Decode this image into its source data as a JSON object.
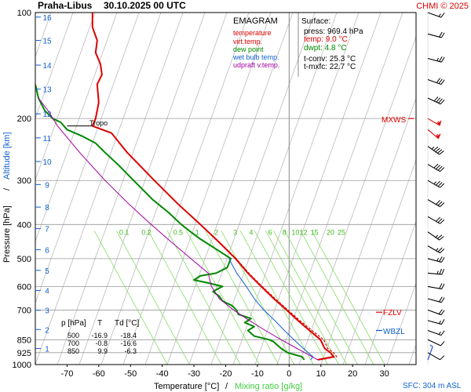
{
  "header": {
    "station": "Praha-Libus",
    "datetime": "30.10.2025 00 UTC",
    "credit": "CHMI © 2025"
  },
  "legend": {
    "title": "EMAGRAM",
    "items": [
      {
        "label": "temperature",
        "color": "#dd0000"
      },
      {
        "label": "virt.temp.",
        "color": "#dd0000"
      },
      {
        "label": "dew point",
        "color": "#008800"
      },
      {
        "label": "wet bulb temp.",
        "color": "#1060d0"
      },
      {
        "label": "udpraft v.temp.",
        "color": "#a000a0"
      }
    ]
  },
  "surface": {
    "title": "Surface:",
    "press": "press: 969.4 hPa",
    "temp": "temp: 9.0 °C",
    "dwpt": "dwpt: 4.8 °C",
    "tconv": "t-conv: 25.3 °C",
    "tmxfc": "t-mxfc: 22.7 °C"
  },
  "levels_table": {
    "headers": [
      "p [hPa]",
      "T",
      "Td [°C]"
    ],
    "rows": [
      [
        "500",
        "-16.9",
        "-18.4"
      ],
      [
        "700",
        "-0.8",
        "-16.6"
      ],
      [
        "850",
        "9.9",
        "-6.3"
      ]
    ]
  },
  "markers": {
    "mxws": "MXWS",
    "fzlv": "FZLV",
    "wbzl": "WBZL",
    "tropo": "Tropo"
  },
  "footer": {
    "sfc": "SFC: 304 m ASL"
  },
  "chart_data": {
    "type": "line",
    "xlabel": "Temperature [°C]",
    "xlabel_sep": "/",
    "xlabel2": "Mixing ratio [g/kg]",
    "ylabel": "Pressure [hPa]",
    "ylabel_sep": "/",
    "ylabel2": "Altitude [km]",
    "xlim": [
      -80,
      40
    ],
    "ylim": [
      1000,
      100
    ],
    "y_scale": "log",
    "x_ticks": [
      -70,
      -60,
      -50,
      -40,
      -30,
      -20,
      -10,
      0,
      10,
      20,
      30
    ],
    "p_ticks": [
      100,
      200,
      300,
      400,
      500,
      600,
      700,
      850,
      925,
      1000
    ],
    "km_ticks": [
      {
        "km": "1",
        "p": 900
      },
      {
        "km": "2",
        "p": 795
      },
      {
        "km": "3",
        "p": 701
      },
      {
        "km": "4",
        "p": 616
      },
      {
        "km": "5",
        "p": 540
      },
      {
        "km": "6",
        "p": 472
      },
      {
        "km": "7",
        "p": 411
      },
      {
        "km": "8",
        "p": 357
      },
      {
        "km": "9",
        "p": 308
      },
      {
        "km": "10",
        "p": 265
      },
      {
        "km": "11",
        "p": 227
      },
      {
        "km": "12",
        "p": 194
      },
      {
        "km": "13",
        "p": 165
      },
      {
        "km": "14",
        "p": 141
      },
      {
        "km": "15",
        "p": 120
      },
      {
        "km": "16",
        "p": 103
      }
    ],
    "mixing_ratio_labels": [
      "0.1",
      "0.2",
      "0.5",
      "1",
      "2",
      "3",
      "4",
      "6",
      "8",
      "10",
      "12",
      "15",
      "20",
      "25"
    ],
    "mixing_ratio_label_p": 400,
    "mixing_ratio_label_t": [
      -52,
      -45,
      -35,
      -29,
      -23,
      -17,
      -12,
      -6,
      -1.5,
      2,
      4.5,
      8,
      13,
      16.5
    ],
    "tropopause_p": 210,
    "mxws_p": 200,
    "fzlv_p": 710,
    "wbzl_p": 800,
    "series": [
      {
        "name": "temperature",
        "color": "#dd0000",
        "points": [
          [
            969,
            9.0
          ],
          [
            950,
            14.0
          ],
          [
            925,
            13.0
          ],
          [
            900,
            11.2
          ],
          [
            850,
            9.9
          ],
          [
            800,
            6.4
          ],
          [
            750,
            2.8
          ],
          [
            700,
            -0.8
          ],
          [
            650,
            -4.8
          ],
          [
            600,
            -8.8
          ],
          [
            550,
            -13.0
          ],
          [
            500,
            -16.9
          ],
          [
            450,
            -22.0
          ],
          [
            400,
            -28.0
          ],
          [
            350,
            -35.0
          ],
          [
            300,
            -42.5
          ],
          [
            250,
            -51.0
          ],
          [
            220,
            -56.0
          ],
          [
            210,
            -62.0
          ],
          [
            200,
            -61.0
          ],
          [
            180,
            -60.0
          ],
          [
            160,
            -60.5
          ],
          [
            150,
            -59.0
          ],
          [
            140,
            -59.5
          ],
          [
            130,
            -61.0
          ],
          [
            120,
            -60.5
          ],
          [
            110,
            -62.0
          ],
          [
            100,
            -62.0
          ]
        ]
      },
      {
        "name": "virt.temp.",
        "color": "#dd0000",
        "points": [
          [
            969,
            10.0
          ],
          [
            950,
            15.0
          ],
          [
            925,
            14.0
          ],
          [
            900,
            12.2
          ],
          [
            850,
            10.9
          ],
          [
            800,
            7.2
          ],
          [
            750,
            3.4
          ],
          [
            700,
            -0.4
          ],
          [
            650,
            -4.4
          ],
          [
            600,
            -8.5
          ],
          [
            550,
            -12.7
          ],
          [
            500,
            -16.7
          ],
          [
            450,
            -21.8
          ],
          [
            400,
            -27.9
          ],
          [
            350,
            -35.0
          ]
        ]
      },
      {
        "name": "dew point",
        "color": "#008800",
        "points": [
          [
            969,
            4.8
          ],
          [
            950,
            4.0
          ],
          [
            925,
            -0.5
          ],
          [
            900,
            -2.5
          ],
          [
            860,
            -5.0
          ],
          [
            850,
            -6.3
          ],
          [
            830,
            -11.0
          ],
          [
            800,
            -13.0
          ],
          [
            780,
            -11.0
          ],
          [
            760,
            -14.0
          ],
          [
            740,
            -12.0
          ],
          [
            720,
            -16.0
          ],
          [
            700,
            -16.6
          ],
          [
            680,
            -18.0
          ],
          [
            660,
            -21.0
          ],
          [
            640,
            -22.0
          ],
          [
            620,
            -24.0
          ],
          [
            600,
            -21.0
          ],
          [
            585,
            -26.0
          ],
          [
            575,
            -30.0
          ],
          [
            560,
            -28.0
          ],
          [
            550,
            -23.0
          ],
          [
            530,
            -19.5
          ],
          [
            500,
            -18.4
          ],
          [
            470,
            -23.0
          ],
          [
            440,
            -28.0
          ],
          [
            420,
            -31.0
          ],
          [
            400,
            -34.0
          ],
          [
            370,
            -38.0
          ],
          [
            340,
            -43.0
          ],
          [
            300,
            -49.0
          ],
          [
            270,
            -54.0
          ],
          [
            250,
            -58.0
          ],
          [
            235,
            -61.0
          ],
          [
            225,
            -65.0
          ],
          [
            215,
            -70.0
          ],
          [
            205,
            -72.0
          ],
          [
            200,
            -74.5
          ],
          [
            190,
            -77.0
          ],
          [
            175,
            -79.0
          ],
          [
            160,
            -80.0
          ]
        ]
      },
      {
        "name": "wet bulb temp.",
        "color": "#1060d0",
        "points": [
          [
            969,
            6.8
          ],
          [
            950,
            7.5
          ],
          [
            925,
            6.0
          ],
          [
            900,
            4.5
          ],
          [
            850,
            1.5
          ],
          [
            800,
            -1.5
          ],
          [
            750,
            -4.5
          ],
          [
            700,
            -8.0
          ],
          [
            650,
            -11.0
          ],
          [
            600,
            -13.5
          ],
          [
            550,
            -16.5
          ],
          [
            520,
            -18.0
          ],
          [
            500,
            -18.9
          ]
        ]
      },
      {
        "name": "udpraft v.temp.",
        "color": "#a000a0",
        "points": [
          [
            969,
            9.0
          ],
          [
            900,
            2.5
          ],
          [
            850,
            -2.5
          ],
          [
            800,
            -7.5
          ],
          [
            750,
            -12.5
          ],
          [
            700,
            -17.5
          ],
          [
            650,
            -22.0
          ],
          [
            600,
            -24.5
          ],
          [
            550,
            -25.5
          ],
          [
            500,
            -31.0
          ],
          [
            450,
            -37.0
          ],
          [
            400,
            -43.5
          ],
          [
            350,
            -50.5
          ],
          [
            300,
            -58.0
          ],
          [
            250,
            -66.0
          ],
          [
            210,
            -73.0
          ],
          [
            190,
            -76.0
          ],
          [
            175,
            -79.0
          ]
        ]
      }
    ],
    "wind_barbs": [
      {
        "p": 100,
        "dir": 290,
        "kt": 15
      },
      {
        "p": 115,
        "dir": 285,
        "kt": 20
      },
      {
        "p": 135,
        "dir": 285,
        "kt": 25
      },
      {
        "p": 155,
        "dir": 290,
        "kt": 30
      },
      {
        "p": 175,
        "dir": 295,
        "kt": 40
      },
      {
        "p": 200,
        "dir": 300,
        "kt": 55
      },
      {
        "p": 215,
        "dir": 310,
        "kt": 55
      },
      {
        "p": 240,
        "dir": 305,
        "kt": 45
      },
      {
        "p": 270,
        "dir": 300,
        "kt": 40
      },
      {
        "p": 300,
        "dir": 300,
        "kt": 35
      },
      {
        "p": 340,
        "dir": 300,
        "kt": 30
      },
      {
        "p": 380,
        "dir": 300,
        "kt": 30
      },
      {
        "p": 420,
        "dir": 305,
        "kt": 25
      },
      {
        "p": 460,
        "dir": 300,
        "kt": 25
      },
      {
        "p": 500,
        "dir": 285,
        "kt": 25
      },
      {
        "p": 550,
        "dir": 275,
        "kt": 25
      },
      {
        "p": 600,
        "dir": 280,
        "kt": 20
      },
      {
        "p": 650,
        "dir": 285,
        "kt": 20
      },
      {
        "p": 700,
        "dir": 290,
        "kt": 20
      },
      {
        "p": 750,
        "dir": 285,
        "kt": 15
      },
      {
        "p": 800,
        "dir": 290,
        "kt": 15
      },
      {
        "p": 850,
        "dir": 295,
        "kt": 10
      },
      {
        "p": 925,
        "dir": 300,
        "kt": 10
      },
      {
        "p": 970,
        "dir": 200,
        "kt": 5
      }
    ]
  }
}
